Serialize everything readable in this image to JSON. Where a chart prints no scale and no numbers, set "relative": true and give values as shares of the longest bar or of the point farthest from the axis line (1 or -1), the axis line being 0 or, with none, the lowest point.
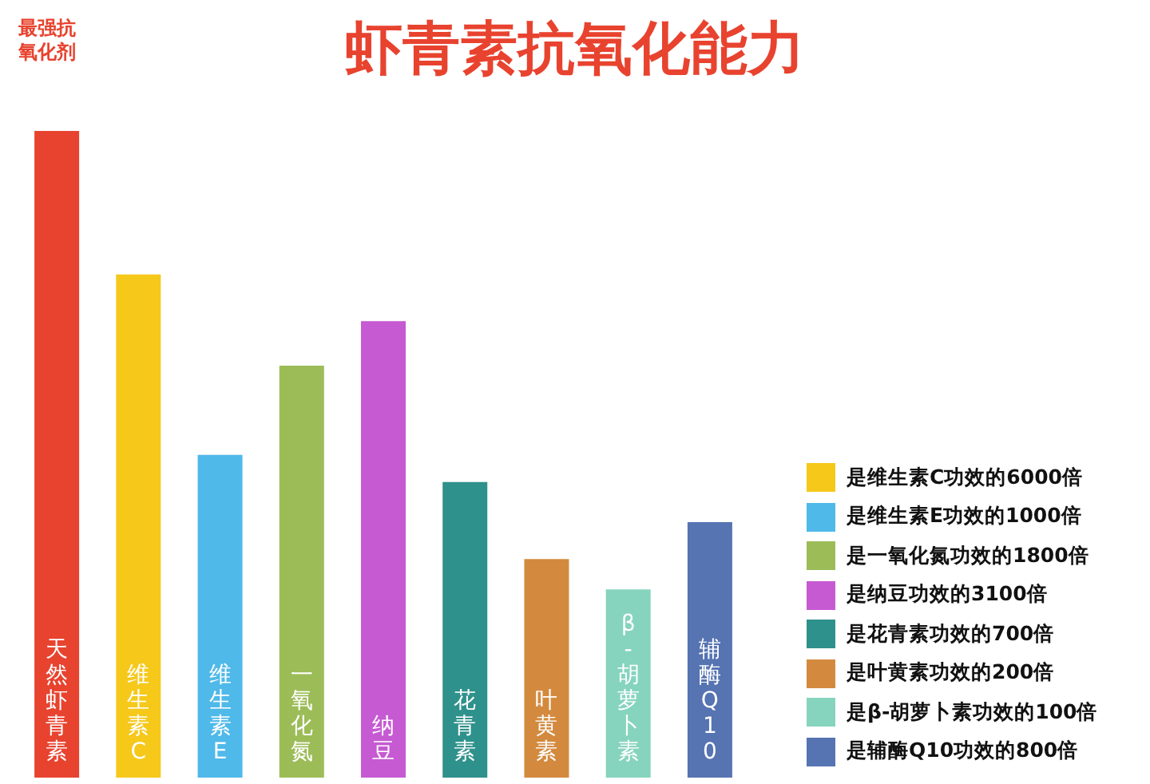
{
  "chart_data": {
    "type": "bar",
    "title": "虾青素抗氧化能力",
    "relative": true,
    "tick_labels": false,
    "categories": [
      "天然虾青素",
      "维生素C",
      "维生素E",
      "一氧化氮",
      "纳豆",
      "花青素",
      "叶黄素",
      "β-胡萝卜素",
      "辅酶Q10"
    ],
    "values": [
      1,
      0.778,
      0.499,
      0.637,
      0.706,
      0.457,
      0.338,
      0.291,
      0.395
    ],
    "colors": [
      "#e8432f",
      "#f5c81a",
      "#4fb9e9",
      "#9cbc58",
      "#c65ad2",
      "#2f918b",
      "#d38a3e",
      "#86d4bd",
      "#5673b2"
    ],
    "annotations": [
      "最强抗氧化剂",
      "是维生素C功效的6000倍",
      "是维生素E功效的1000倍",
      "是一氧化氮功效的1800倍",
      "是纳豆功效的3100倍",
      "是花青素功效的700倍",
      "是叶黄素功效的200倍",
      "是β-胡萝卜素功效的100倍",
      "是辅酶Q10功效的800倍"
    ]
  }
}
